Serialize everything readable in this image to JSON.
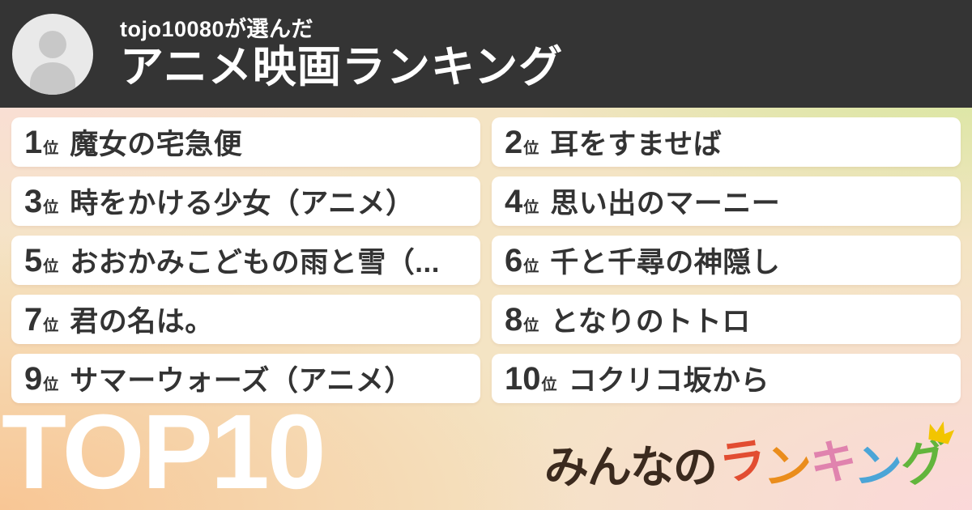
{
  "header": {
    "eyebrow": "tojo10080が選んだ",
    "title": "アニメ映画ランキング",
    "avatar_icon": "person-icon"
  },
  "ranking": {
    "items": [
      {
        "rank": "1",
        "rank_suffix": "位",
        "title": "魔女の宅急便"
      },
      {
        "rank": "2",
        "rank_suffix": "位",
        "title": "耳をすませば"
      },
      {
        "rank": "3",
        "rank_suffix": "位",
        "title": "時をかける少女（アニメ）"
      },
      {
        "rank": "4",
        "rank_suffix": "位",
        "title": "思い出のマーニー"
      },
      {
        "rank": "5",
        "rank_suffix": "位",
        "title": "おおかみこどもの雨と雪（..."
      },
      {
        "rank": "6",
        "rank_suffix": "位",
        "title": "千と千尋の神隠し"
      },
      {
        "rank": "7",
        "rank_suffix": "位",
        "title": "君の名は。"
      },
      {
        "rank": "8",
        "rank_suffix": "位",
        "title": "となりのトトロ"
      },
      {
        "rank": "9",
        "rank_suffix": "位",
        "title": "サマーウォーズ（アニメ）"
      },
      {
        "rank": "10",
        "rank_suffix": "位",
        "title": "コクリコ坂から"
      }
    ]
  },
  "footer": {
    "top_label": "TOP10",
    "logo": {
      "prefix": "みんなの",
      "colored_chars": [
        {
          "char": "ラ",
          "color": "#e24d31"
        },
        {
          "char": "ン",
          "color": "#ea8d1c"
        },
        {
          "char": "キ",
          "color": "#e083ae"
        },
        {
          "char": "ン",
          "color": "#4ba5d7"
        },
        {
          "char": "グ",
          "color": "#62b53c"
        }
      ],
      "crown_icon": "crown-icon",
      "crown_color": "#f2c500"
    }
  },
  "colors": {
    "header_bg": "#343434",
    "ink": "#333333",
    "card_bg": "#ffffff",
    "top10": "#ffffff",
    "logo_brown": "#3b2a1e",
    "bg_top_left": "#fcdcdc",
    "bg_top_right": "#cbe98e",
    "bg_bottom_left": "#f8c593",
    "bg_bottom_right": "#fbd8da",
    "avatar_bg": "#e9e9e9",
    "avatar_fg": "#c8c8c8"
  }
}
